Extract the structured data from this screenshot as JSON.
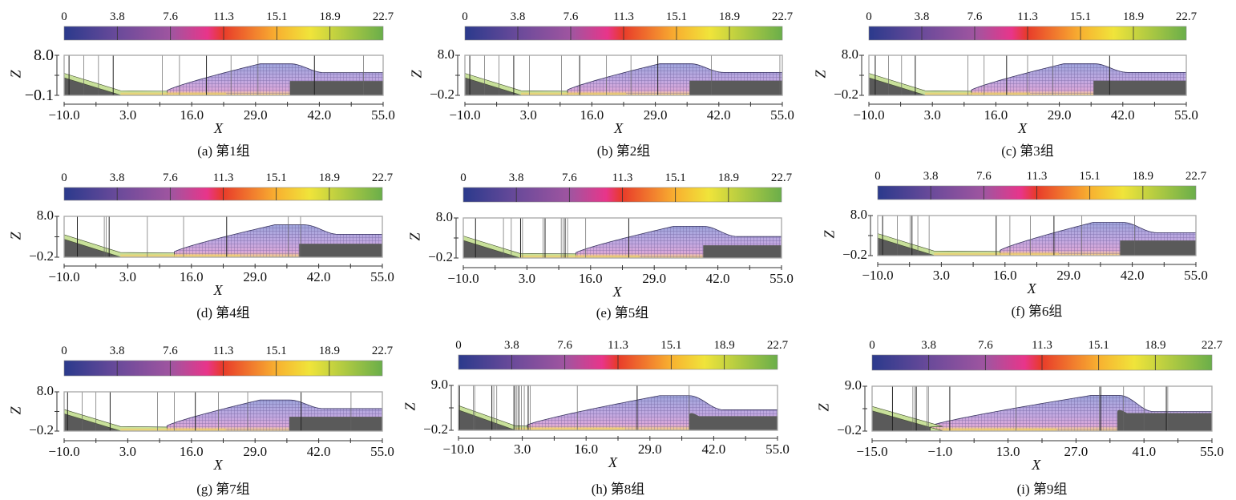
{
  "colorbar": {
    "ticks": [
      "0",
      "3.8",
      "7.6",
      "11.3",
      "15.1",
      "18.9",
      "22.7"
    ],
    "range": [
      0,
      22.7
    ],
    "stops": [
      {
        "v": 0,
        "color": "#2b3a8c"
      },
      {
        "v": 3.8,
        "color": "#6a4a9a"
      },
      {
        "v": 7.6,
        "color": "#a055a0"
      },
      {
        "v": 10.2,
        "color": "#e8358a"
      },
      {
        "v": 11.3,
        "color": "#e83a2a"
      },
      {
        "v": 15.1,
        "color": "#f8b030"
      },
      {
        "v": 17.5,
        "color": "#f0e43a"
      },
      {
        "v": 22.7,
        "color": "#6aae4a"
      }
    ]
  },
  "colors": {
    "ground": "#5a5a5a",
    "sediment_layer": "#c8e09a",
    "flow_fill": "#c9b4e8",
    "flow_core": "#a8b0e0",
    "frame": "#999999"
  },
  "chart_data": [
    {
      "type": "heatmap",
      "id": "a",
      "caption": "(a) 第1组",
      "xlabel": "X",
      "ylabel": "Z",
      "xlim": [
        -10.0,
        55.0
      ],
      "x_ticks": [
        "-10.0",
        "3.0",
        "16.0",
        "29.0",
        "42.0",
        "55.0"
      ],
      "z_ticks": [
        "8.0",
        "-0.1"
      ],
      "zlim": [
        -0.1,
        8.0
      ],
      "probe_lines_x": [
        -9,
        -6,
        -3,
        0,
        10,
        13.5,
        19,
        24,
        29.5,
        41,
        51
      ]
    },
    {
      "type": "heatmap",
      "id": "b",
      "caption": "(b) 第2组",
      "xlabel": "X",
      "ylabel": "Z",
      "xlim": [
        -10.0,
        55.0
      ],
      "x_ticks": [
        "-10.0",
        "3.0",
        "16.0",
        "29.0",
        "42.0",
        "55.0"
      ],
      "z_ticks": [
        "8.0",
        "-0.2"
      ],
      "zlim": [
        -0.2,
        8.0
      ],
      "probe_lines_x": [
        -9,
        -6,
        -3,
        0,
        3.2,
        9.8,
        13.5,
        19,
        24,
        29.5,
        40.5,
        54.5
      ]
    },
    {
      "type": "heatmap",
      "id": "c",
      "caption": "(c) 第3组",
      "xlabel": "X",
      "ylabel": "Z",
      "xlim": [
        -10.0,
        55.0
      ],
      "x_ticks": [
        "-10.0",
        "3.0",
        "16.0",
        "29.0",
        "42.0",
        "55.0"
      ],
      "z_ticks": [
        "8.0",
        "-0.2"
      ],
      "zlim": [
        -0.2,
        8.0
      ],
      "probe_lines_x": [
        -8.7,
        -6,
        -3.3,
        -0.5,
        10.3,
        13.6,
        18.2,
        22.5,
        27.7,
        39.3
      ]
    },
    {
      "type": "heatmap",
      "id": "d",
      "caption": "(d) 第4组",
      "xlabel": "X",
      "ylabel": "Z",
      "xlim": [
        -10.0,
        55.0
      ],
      "x_ticks": [
        "-10.0",
        "3.0",
        "16.0",
        "29.0",
        "42.0",
        "55.0"
      ],
      "z_ticks": [
        "8.0",
        "-0.2"
      ],
      "zlim": [
        -0.2,
        8.0
      ],
      "probe_lines_x": [
        -7.3,
        -1.8,
        -1.4,
        -0.8,
        7.0,
        14.4,
        23.2,
        35.8,
        38.3
      ]
    },
    {
      "type": "heatmap",
      "id": "e",
      "caption": "(e) 第5组",
      "xlabel": "X",
      "ylabel": "Z",
      "xlim": [
        -10.0,
        55.0
      ],
      "x_ticks": [
        "-10.0",
        "3.0",
        "16.0",
        "29.0",
        "42.0",
        "55.0"
      ],
      "z_ticks": [
        "8.0",
        "-0.2"
      ],
      "zlim": [
        -0.2,
        8.0
      ],
      "probe_lines_x": [
        -7.5,
        -1.8,
        -0.2,
        1.7,
        2.1,
        6.3,
        6.7,
        10.0,
        10.4,
        10.8,
        11.3,
        15.0,
        23.8
      ]
    },
    {
      "type": "heatmap",
      "id": "f",
      "caption": "(f) 第6组",
      "xlabel": "X",
      "ylabel": "Z",
      "xlim": [
        -10.0,
        55.0
      ],
      "x_ticks": [
        "-10.0",
        "3.0",
        "16.0",
        "29.0",
        "42.0",
        "55.0"
      ],
      "z_ticks": [
        "8.0",
        "-0.2"
      ],
      "zlim": [
        -0.2,
        8.0
      ],
      "probe_lines_x": [
        -9,
        -6,
        -3.4,
        -3.0,
        -1.8,
        0.5,
        14.2,
        17.0,
        21.2,
        26.0,
        31.7,
        42.5
      ]
    },
    {
      "type": "heatmap",
      "id": "g",
      "caption": "(g) 第7组",
      "xlabel": "X",
      "ylabel": "Z",
      "xlim": [
        -10.0,
        55.0
      ],
      "x_ticks": [
        "-10.0",
        "3.0",
        "16.0",
        "29.0",
        "42.0",
        "55.0"
      ],
      "z_ticks": [
        "8.0",
        "-0.2"
      ],
      "zlim": [
        -0.2,
        8.0
      ],
      "probe_lines_x": [
        -9.3,
        -6.3,
        -3.5,
        -0.6,
        9.1,
        12.5,
        16.8,
        21.5,
        27.5,
        38.4,
        48.6
      ]
    },
    {
      "type": "heatmap",
      "id": "h",
      "caption": "(h) 第8组",
      "xlabel": "X",
      "ylabel": "Z",
      "xlim": [
        -10.0,
        55.0
      ],
      "x_ticks": [
        "-10.0",
        "3.0",
        "16.0",
        "29.0",
        "42.0",
        "55.0"
      ],
      "z_ticks": [
        "9.0",
        "-0.2"
      ],
      "zlim": [
        -0.2,
        9.0
      ],
      "probe_lines_x": [
        -9.8,
        -7.0,
        -6.7,
        -3.2,
        -2.8,
        -2.2,
        1.3,
        1.6,
        1.9,
        2.3,
        2.8,
        3.4,
        4.2,
        4.6,
        14.2,
        26.4,
        37.0
      ]
    },
    {
      "type": "heatmap",
      "id": "i",
      "caption": "(i) 第9组",
      "xlabel": "X",
      "ylabel": "Z",
      "xlim": [
        -15.0,
        55.0
      ],
      "x_ticks": [
        "-15.0",
        "-1.0",
        "13.0",
        "27.0",
        "41.0",
        "55.0"
      ],
      "z_ticks": [
        "9.0",
        "-0.2"
      ],
      "zlim": [
        -0.2,
        9.0
      ],
      "probe_lines_x": [
        -10.8,
        -6.6,
        -6.2,
        -5.9,
        -3.7,
        -3.4,
        1.0,
        14.6,
        31.8,
        32.1,
        36.8,
        41.0,
        45.6,
        45.9
      ]
    }
  ]
}
